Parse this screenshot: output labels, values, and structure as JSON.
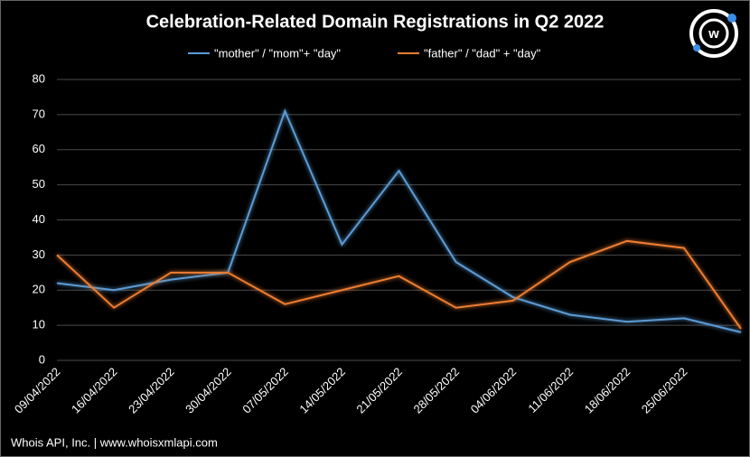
{
  "chart_data": {
    "type": "line",
    "title": "Celebration-Related Domain Registrations in Q2 2022",
    "categories": [
      "09/04/2022",
      "16/04/2022",
      "23/04/2022",
      "30/04/2022",
      "07/05/2022",
      "14/05/2022",
      "21/05/2022",
      "28/05/2022",
      "04/06/2022",
      "11/06/2022",
      "18/06/2022",
      "25/06/2022",
      null
    ],
    "series": [
      {
        "name": "\"mother\" / \"mom\"+ \"day\"",
        "color": "#5b9bd5",
        "values": [
          22,
          20,
          23,
          25,
          71,
          33,
          54,
          28,
          18,
          13,
          11,
          12,
          8
        ]
      },
      {
        "name": "\"father\" / \"dad\" + \"day\"",
        "color": "#ed7d31",
        "values": [
          30,
          15,
          25,
          25,
          16,
          20,
          24,
          15,
          17,
          28,
          34,
          32,
          9
        ]
      }
    ],
    "ylim": [
      0,
      80
    ],
    "yticks": [
      0,
      10,
      20,
      30,
      40,
      50,
      60,
      70,
      80
    ],
    "grid": true,
    "legend": "top"
  },
  "footer": "Whois API, Inc. | www.whoisxmlapi.com"
}
